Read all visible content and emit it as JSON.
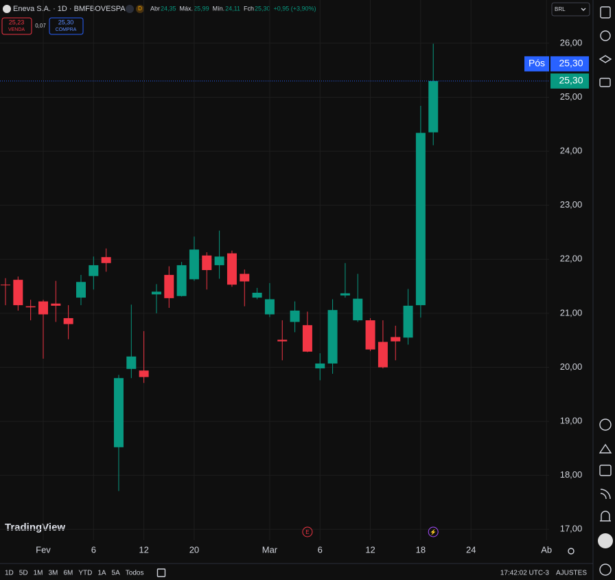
{
  "header": {
    "symbol": "Eneva S.A. · 1D · BMFBOVESPA",
    "badge": "D",
    "ohlc": [
      {
        "label": "Abr",
        "value": "24,35"
      },
      {
        "label": "Máx.",
        "value": "25,99"
      },
      {
        "label": "Mín.",
        "value": "24,11"
      },
      {
        "label": "Fch",
        "value": "25,30"
      }
    ],
    "change": "+0,95 (+3,90%)",
    "sell": {
      "price": "25,23",
      "label": "VENDA"
    },
    "spread": "0,07",
    "buy": {
      "price": "25,30",
      "label": "COMPRA"
    },
    "currency": "BRL"
  },
  "chart_data": {
    "type": "candlestick",
    "up_color": "#089981",
    "down_color": "#f23645",
    "grid": true,
    "categories": [
      null,
      null,
      null,
      "Fev",
      null,
      null,
      null,
      "6",
      null,
      null,
      null,
      "12",
      null,
      null,
      null,
      "20",
      null,
      null,
      null,
      null,
      null,
      "Mar",
      null,
      null,
      null,
      "6",
      null,
      null,
      null,
      "12",
      null,
      null,
      null,
      "18",
      null,
      null,
      null,
      "24",
      null,
      null,
      null,
      null,
      null,
      "Ab"
    ],
    "open": [
      21.53,
      21.62,
      21.13,
      21.22,
      21.18,
      20.91,
      21.29,
      21.69,
      22.04,
      18.52,
      19.97,
      19.94,
      21.35,
      21.71,
      21.32,
      21.63,
      22.07,
      21.89,
      22.11,
      21.73,
      21.29,
      20.98,
      20.51,
      20.84,
      20.78,
      19.98,
      20.07,
      21.33,
      20.87,
      20.87,
      20.47,
      20.56,
      20.55,
      21.15,
      24.35,
      null,
      null,
      null,
      null,
      null,
      null,
      null,
      null,
      null
    ],
    "high": [
      21.65,
      21.68,
      21.25,
      21.25,
      21.6,
      21.15,
      21.71,
      22.05,
      22.2,
      19.86,
      21.16,
      20.67,
      21.54,
      21.87,
      21.95,
      22.42,
      22.13,
      22.53,
      22.16,
      21.81,
      21.47,
      21.56,
      20.87,
      21.22,
      21.03,
      20.26,
      21.26,
      21.93,
      21.73,
      20.91,
      20.87,
      20.77,
      21.45,
      24.84,
      25.99,
      null,
      null,
      null,
      null,
      null,
      null,
      null,
      null,
      null
    ],
    "low": [
      21.15,
      21.05,
      20.87,
      20.16,
      20.84,
      20.52,
      21.15,
      21.44,
      21.77,
      17.71,
      19.8,
      19.71,
      21.0,
      21.1,
      21.31,
      21.6,
      21.44,
      21.64,
      21.49,
      21.13,
      21.26,
      20.93,
      20.13,
      20.65,
      20.28,
      19.76,
      19.88,
      21.29,
      20.84,
      20.3,
      19.98,
      20.13,
      20.42,
      20.92,
      24.11,
      null,
      null,
      null,
      null,
      null,
      null,
      null,
      null,
      null
    ],
    "close": [
      21.52,
      21.15,
      21.11,
      20.98,
      21.14,
      20.8,
      21.58,
      21.89,
      21.93,
      19.8,
      20.2,
      19.82,
      21.4,
      21.28,
      21.89,
      22.18,
      21.8,
      22.05,
      21.53,
      21.59,
      21.38,
      21.26,
      20.48,
      21.05,
      20.29,
      20.07,
      21.06,
      21.37,
      21.27,
      20.33,
      20.0,
      20.48,
      21.14,
      24.34,
      25.3,
      null,
      null,
      null,
      null,
      null,
      null,
      null,
      null,
      null
    ],
    "ylim": [
      16.8,
      26.8
    ],
    "yticks": [
      {
        "value": 17,
        "label": "17,00"
      },
      {
        "value": 18,
        "label": "18,00"
      },
      {
        "value": 19,
        "label": "19,00"
      },
      {
        "value": 20,
        "label": "20,00"
      },
      {
        "value": 21,
        "label": "21,00"
      },
      {
        "value": 22,
        "label": "22,00"
      },
      {
        "value": 23,
        "label": "23,00"
      },
      {
        "value": 24,
        "label": "24,00"
      },
      {
        "value": 25,
        "label": "25,00"
      },
      {
        "value": 26,
        "label": "26,00"
      }
    ],
    "position": {
      "label": "Pós",
      "value": 25.3,
      "value_label": "25,30",
      "color": "#2962ff"
    },
    "last_price": {
      "value": 25.3,
      "label": "25,30"
    },
    "events": [
      {
        "label": "E",
        "index": 24
      },
      {
        "label": "⚡",
        "index": 34
      }
    ]
  },
  "footer": {
    "ranges": [
      "1D",
      "5D",
      "1M",
      "3M",
      "6M",
      "YTD",
      "1A",
      "5A",
      "Todos"
    ],
    "clock": "17:42:02 UTC-3",
    "settings": "AJUSTES"
  },
  "watermark": "TradingView"
}
